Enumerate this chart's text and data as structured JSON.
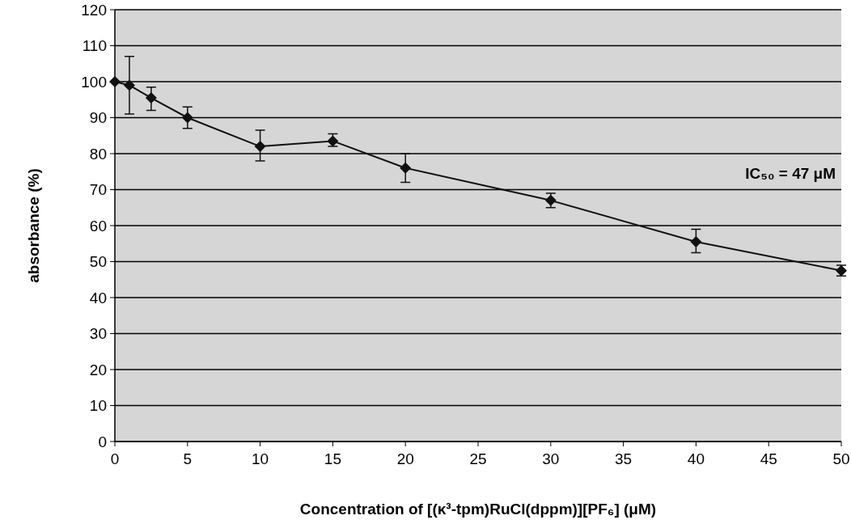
{
  "chart_data": {
    "type": "line",
    "xlabel": "Concentration of [(κ³-tpm)RuCl(dppm)][PF₆]  (μM)",
    "ylabel": "absorbance (%)",
    "x": [
      0,
      1,
      2.5,
      5,
      10,
      15,
      20,
      30,
      40,
      50
    ],
    "series": [
      {
        "color": "#111111",
        "values": [
          100,
          99,
          95.5,
          90,
          82,
          83.5,
          76,
          67,
          55.5,
          47.5
        ],
        "errors": [
          null,
          [
            91,
            107
          ],
          [
            92,
            98.5
          ],
          [
            87,
            93
          ],
          [
            78,
            86.5
          ],
          [
            82,
            85.5
          ],
          [
            72,
            80
          ],
          [
            65,
            69
          ],
          [
            52.5,
            59
          ],
          [
            46,
            49
          ]
        ]
      }
    ],
    "xlim": [
      0,
      50
    ],
    "xticks": [
      0,
      5,
      10,
      15,
      20,
      25,
      30,
      35,
      40,
      45,
      50
    ],
    "ylim": [
      0,
      120
    ],
    "yticks": [
      0,
      10,
      20,
      30,
      40,
      50,
      60,
      70,
      80,
      90,
      100,
      110,
      120
    ],
    "grid": "y",
    "marker": "diamond",
    "line_style": "solid",
    "annotations": [
      "IC₅₀ =  47 μM"
    ]
  }
}
